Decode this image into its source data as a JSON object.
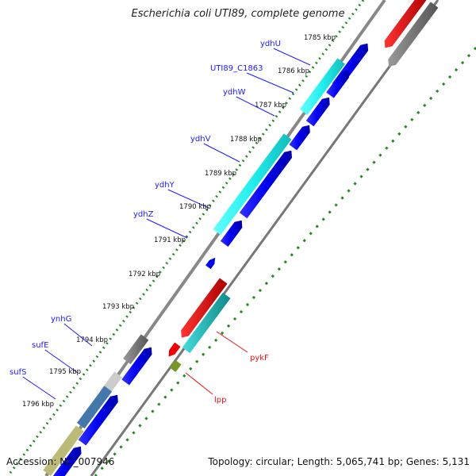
{
  "title": "Escherichia coli UTI89, complete genome",
  "footer": {
    "accession": "Accession: NC_007946",
    "summary": "Topology: circular; Length: 5,065,741 bp; Genes: 5,131"
  },
  "ticks": [
    {
      "label": "1785 kbp",
      "pos": 1785
    },
    {
      "label": "1786 kbp",
      "pos": 1786
    },
    {
      "label": "1787 kbp",
      "pos": 1787
    },
    {
      "label": "1788 kbp",
      "pos": 1788
    },
    {
      "label": "1789 kbp",
      "pos": 1789
    },
    {
      "label": "1790 kbp",
      "pos": 1790
    },
    {
      "label": "1791 kbp",
      "pos": 1791
    },
    {
      "label": "1792 kbp",
      "pos": 1792
    },
    {
      "label": "1793 kbp",
      "pos": 1793
    },
    {
      "label": "1794 kbp",
      "pos": 1794
    },
    {
      "label": "1795 kbp",
      "pos": 1795
    },
    {
      "label": "1796 kbp",
      "pos": 1796
    }
  ],
  "genes": [
    {
      "name": "ydhU"
    },
    {
      "name": "UTI89_C1863"
    },
    {
      "name": "ydhW"
    },
    {
      "name": "ydhV"
    },
    {
      "name": "ydhY"
    },
    {
      "name": "ydhZ"
    },
    {
      "name": "ynhG"
    },
    {
      "name": "sufE"
    },
    {
      "name": "sufS"
    },
    {
      "name": "pykF"
    },
    {
      "name": "lpp"
    }
  ],
  "colors": {
    "label_blue": "#1a1aff",
    "label_red": "#ee1111",
    "blue_feature": "#0000ee",
    "cyan_feature": "#22eeee",
    "teal_feature": "#22bbbb",
    "red_feature": "#ee0000",
    "gray_feature": "#777777",
    "olive_feature": "#779922",
    "khaki_feature": "#bbbb77",
    "steel_feature": "#4477aa",
    "backbone": "#888888",
    "dots": "#228822"
  }
}
